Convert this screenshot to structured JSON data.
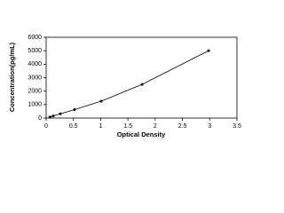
{
  "chart_data": {
    "type": "scatter",
    "x_label": "Optical Density",
    "y_label": "Concentration(pg/mL)",
    "x": [
      0.07,
      0.13,
      0.26,
      0.52,
      1.01,
      1.76,
      2.98
    ],
    "values": [
      78,
      156,
      312,
      625,
      1250,
      2500,
      5000
    ],
    "color": "#000000",
    "line": true,
    "xlim": [
      0,
      3.5
    ],
    "xticks": [
      0,
      0.5,
      1,
      1.5,
      2,
      2.5,
      3,
      3.5
    ],
    "ylim": [
      0,
      6000
    ],
    "yticks": [
      0,
      1000,
      2000,
      3000,
      4000,
      5000,
      6000
    ],
    "grid": false
  }
}
